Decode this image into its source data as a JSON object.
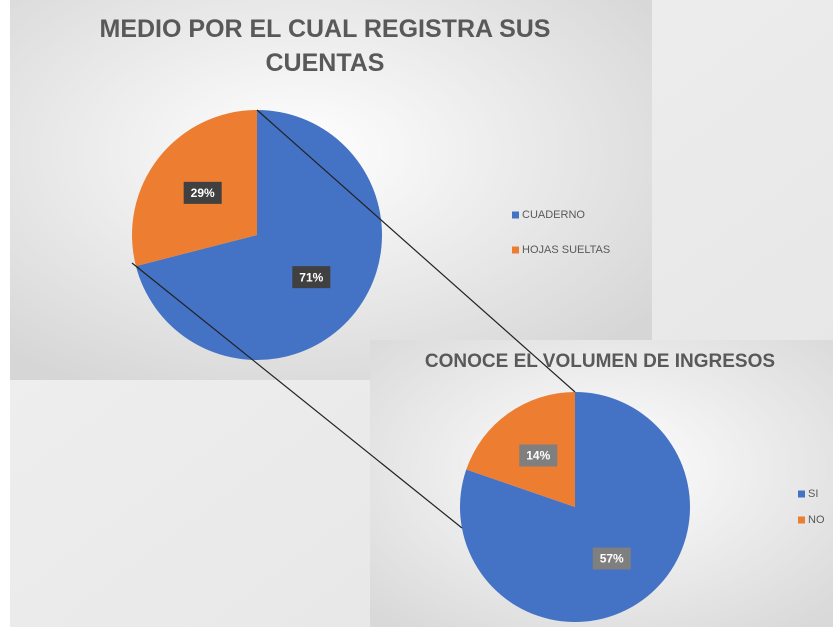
{
  "chart_data": [
    {
      "type": "pie",
      "title": "MEDIO POR EL CUAL REGISTRA SUS CUENTAS",
      "categories": [
        "CUADERNO",
        "HOJAS SUELTAS"
      ],
      "values": [
        71,
        29
      ],
      "value_labels": [
        "71%",
        "29%"
      ],
      "colors": [
        "#4472c4",
        "#ed7d31"
      ]
    },
    {
      "type": "pie",
      "title": "CONOCE EL VOLUMEN DE INGRESOS",
      "categories": [
        "SI",
        "NO"
      ],
      "values": [
        57,
        14
      ],
      "value_labels": [
        "57%",
        "14%"
      ],
      "colors": [
        "#4472c4",
        "#ed7d31"
      ]
    }
  ]
}
